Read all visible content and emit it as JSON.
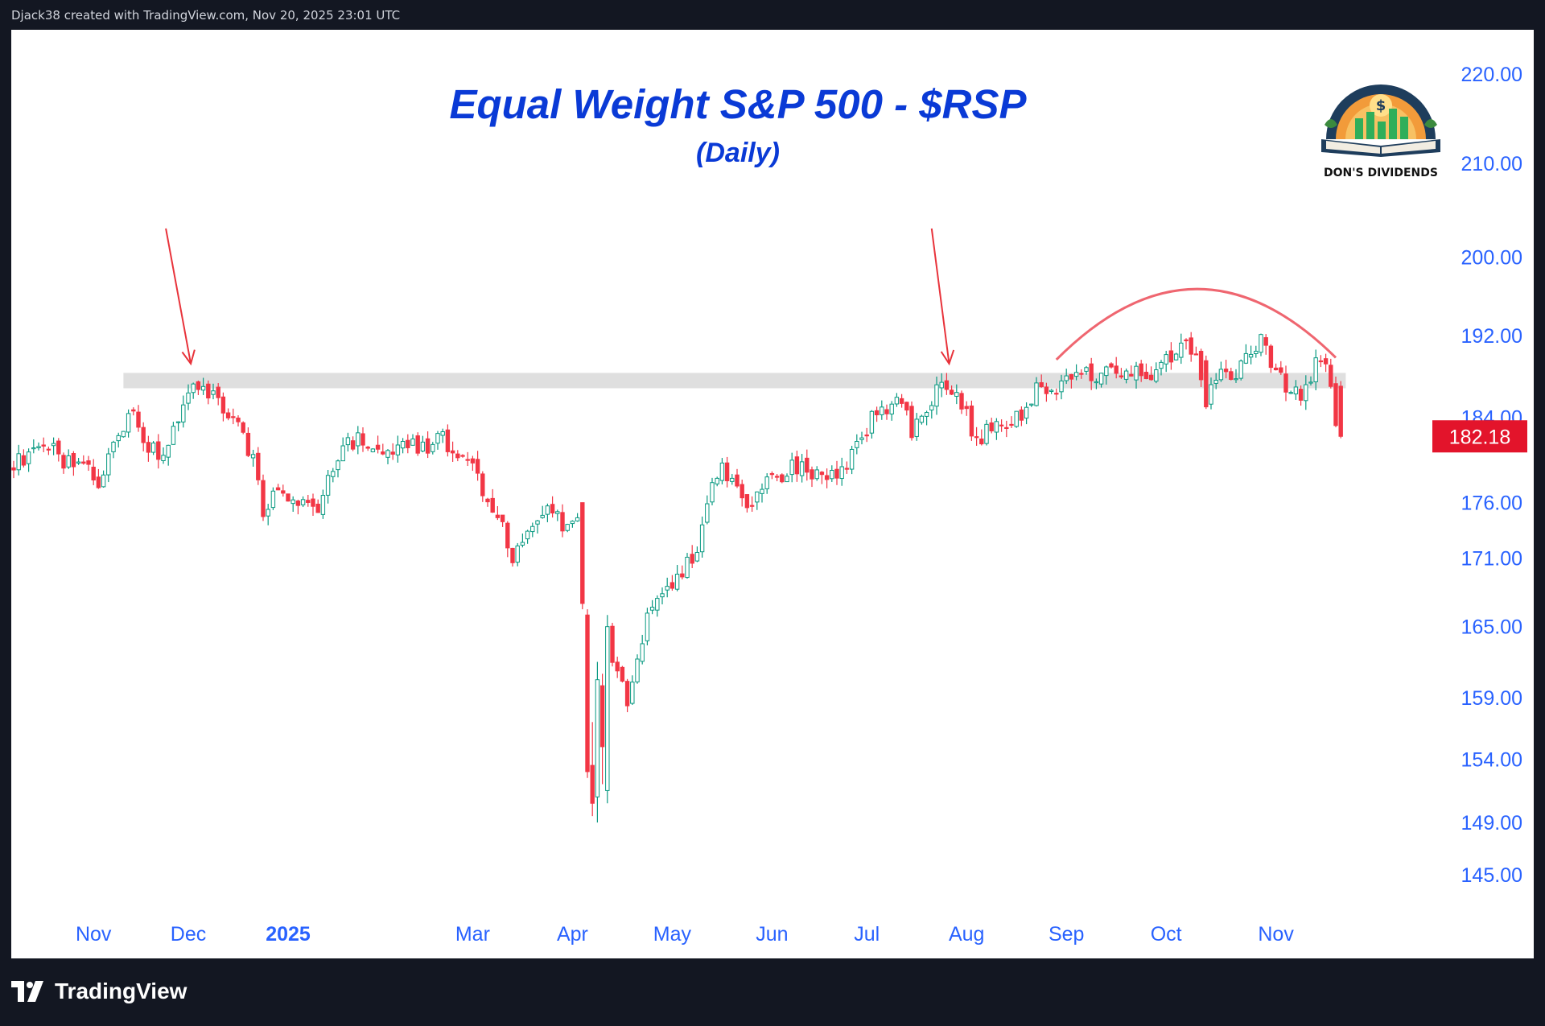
{
  "header": {
    "attribution": "Djack38 created with TradingView.com, Nov 20, 2025 23:01 UTC"
  },
  "footer": {
    "brand": "TradingView",
    "brand_icon": "tradingview-logo-icon"
  },
  "badge": {
    "text": "DON'S DIVIDENDS",
    "icon": "dons-dividends-logo"
  },
  "colors": {
    "up": "#089981",
    "up_fill": "#ffffff",
    "down": "#f23645",
    "axis_text": "#2962ff",
    "title": "#0a3ad6",
    "price_tag": "#e3142b",
    "annotation": "#e8333b",
    "arc": "#ef6670",
    "zone": "#d9d9d9"
  },
  "chart_data": {
    "type": "candlestick",
    "title": "Equal Weight S&P 500 - $RSP",
    "subtitle": "(Daily)",
    "y_ticks": [
      220,
      210,
      200,
      192,
      184,
      176,
      171,
      165,
      159,
      154,
      149,
      145
    ],
    "y_tick_labels": [
      "220.00",
      "210.00",
      "200.00",
      "192.00",
      "184.00",
      "176.00",
      "171.00",
      "165.00",
      "159.00",
      "154.00",
      "149.00",
      "145.00"
    ],
    "y_scale": "log",
    "ylim": [
      142,
      224
    ],
    "x_labels": [
      {
        "label": "Nov",
        "bold": false,
        "index": 16
      },
      {
        "label": "Dec",
        "bold": false,
        "index": 35
      },
      {
        "label": "2025",
        "bold": true,
        "index": 55
      },
      {
        "label": "Mar",
        "bold": false,
        "index": 92
      },
      {
        "label": "Apr",
        "bold": false,
        "index": 112
      },
      {
        "label": "May",
        "bold": false,
        "index": 132
      },
      {
        "label": "Jun",
        "bold": false,
        "index": 152
      },
      {
        "label": "Jul",
        "bold": false,
        "index": 171
      },
      {
        "label": "Aug",
        "bold": false,
        "index": 191
      },
      {
        "label": "Sep",
        "bold": false,
        "index": 211
      },
      {
        "label": "Oct",
        "bold": false,
        "index": 231
      },
      {
        "label": "Nov",
        "bold": false,
        "index": 253
      }
    ],
    "candle_count": 267,
    "last_price": "182.18",
    "last_price_value": 182.18,
    "close_path": [
      [
        0,
        179.5
      ],
      [
        6,
        181.5
      ],
      [
        10,
        180.0
      ],
      [
        14,
        179.5
      ],
      [
        17,
        177.5
      ],
      [
        21,
        182.5
      ],
      [
        24,
        185.0
      ],
      [
        27,
        181.0
      ],
      [
        30,
        180.5
      ],
      [
        34,
        185.5
      ],
      [
        36,
        187.8
      ],
      [
        40,
        186.0
      ],
      [
        44,
        184.0
      ],
      [
        48,
        180.0
      ],
      [
        50,
        175.0
      ],
      [
        53,
        177.5
      ],
      [
        56,
        176.0
      ],
      [
        59,
        176.5
      ],
      [
        61,
        174.5
      ],
      [
        63,
        178.0
      ],
      [
        66,
        181.5
      ],
      [
        70,
        182.0
      ],
      [
        74,
        180.0
      ],
      [
        78,
        181.5
      ],
      [
        82,
        181.0
      ],
      [
        86,
        182.0
      ],
      [
        89,
        180.5
      ],
      [
        92,
        179.0
      ],
      [
        95,
        176.5
      ],
      [
        98,
        174.0
      ],
      [
        100,
        171.0
      ],
      [
        102,
        173.0
      ],
      [
        105,
        175.0
      ],
      [
        108,
        175.5
      ],
      [
        111,
        173.5
      ],
      [
        113,
        174.5
      ],
      [
        114,
        168.0
      ],
      [
        115,
        158.0
      ],
      [
        117,
        151.0
      ],
      [
        119,
        162.0
      ],
      [
        121,
        161.0
      ],
      [
        123,
        158.5
      ],
      [
        125,
        162.0
      ],
      [
        127,
        166.5
      ],
      [
        129,
        167.5
      ],
      [
        132,
        168.5
      ],
      [
        135,
        170.5
      ],
      [
        137,
        172.0
      ],
      [
        140,
        178.5
      ],
      [
        142,
        179.0
      ],
      [
        145,
        177.0
      ],
      [
        147,
        175.0
      ],
      [
        149,
        177.5
      ],
      [
        152,
        178.0
      ],
      [
        155,
        179.0
      ],
      [
        158,
        179.5
      ],
      [
        161,
        178.5
      ],
      [
        164,
        178.5
      ],
      [
        166,
        179.0
      ],
      [
        169,
        181.5
      ],
      [
        171,
        183.0
      ],
      [
        173,
        185.0
      ],
      [
        176,
        185.0
      ],
      [
        178,
        185.5
      ],
      [
        180,
        182.5
      ],
      [
        183,
        184.5
      ],
      [
        186,
        187.5
      ],
      [
        189,
        186.5
      ],
      [
        191,
        184.5
      ],
      [
        193,
        181.5
      ],
      [
        196,
        183.0
      ],
      [
        199,
        182.5
      ],
      [
        202,
        184.5
      ],
      [
        205,
        186.5
      ],
      [
        208,
        186.0
      ],
      [
        211,
        187.5
      ],
      [
        214,
        189.0
      ],
      [
        217,
        187.5
      ],
      [
        220,
        189.5
      ],
      [
        223,
        188.0
      ],
      [
        226,
        188.5
      ],
      [
        229,
        188.0
      ],
      [
        232,
        190.0
      ],
      [
        235,
        191.5
      ],
      [
        237,
        190.0
      ],
      [
        239,
        185.0
      ],
      [
        241,
        188.0
      ],
      [
        244,
        187.5
      ],
      [
        247,
        189.5
      ],
      [
        250,
        191.5
      ],
      [
        253,
        188.5
      ],
      [
        256,
        186.0
      ],
      [
        259,
        186.5
      ],
      [
        261,
        189.5
      ],
      [
        263,
        188.5
      ],
      [
        265,
        184.0
      ],
      [
        266,
        182.18
      ]
    ],
    "overrides": [
      {
        "i": 114,
        "o": 176.0,
        "c": 167.0,
        "h": 176.0,
        "l": 166.5
      },
      {
        "i": 115,
        "o": 166.0,
        "c": 153.0,
        "h": 166.5,
        "l": 152.5
      },
      {
        "i": 116,
        "o": 153.5,
        "c": 150.5,
        "h": 157.0,
        "l": 149.5
      },
      {
        "i": 117,
        "o": 151.0,
        "c": 160.5,
        "h": 162.0,
        "l": 149.0
      },
      {
        "i": 118,
        "o": 160.0,
        "c": 155.0,
        "h": 161.0,
        "l": 152.0
      },
      {
        "i": 119,
        "o": 151.5,
        "c": 165.0,
        "h": 166.0,
        "l": 150.5
      },
      {
        "i": 239,
        "o": 189.5,
        "c": 185.0,
        "h": 190.0,
        "l": 184.8
      },
      {
        "i": 266,
        "o": 187.0,
        "c": 182.18,
        "h": 187.5,
        "l": 182.0
      }
    ],
    "annotations": {
      "resistance_zone": {
        "y_low": 186.8,
        "y_high": 188.3,
        "i_start": 22,
        "i_end": 267
      },
      "arrows": [
        {
          "tip_i": 35.5,
          "tip_price": 189.2,
          "from_i": 30.5,
          "from_price": 203.0
        },
        {
          "tip_i": 187.5,
          "tip_price": 189.2,
          "from_i": 184.0,
          "from_price": 203.0
        }
      ],
      "arc": {
        "i_start": 209,
        "i_end": 265,
        "i_peak": 237,
        "price_start": 189.6,
        "price_end": 189.8,
        "price_peak": 196.7
      }
    }
  }
}
